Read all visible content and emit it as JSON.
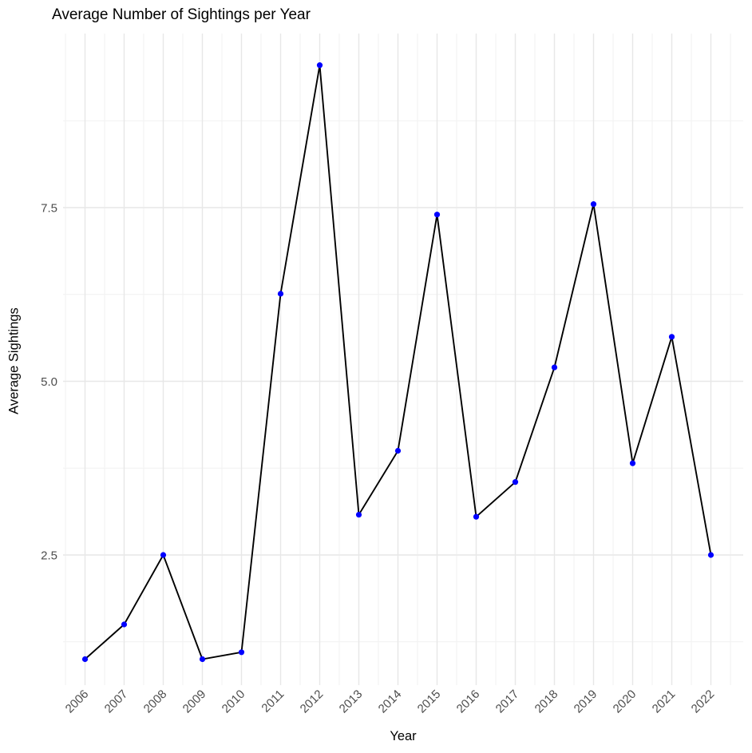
{
  "figure": {
    "title": "Average Number of Sightings per Year",
    "x_axis_title": "Year",
    "y_axis_title": "Average Sightings"
  },
  "chart_data": {
    "type": "line",
    "title": "Average Number of Sightings per Year",
    "xlabel": "Year",
    "ylabel": "Average Sightings",
    "categories": [
      "2006",
      "2007",
      "2008",
      "2009",
      "2010",
      "2011",
      "2012",
      "2013",
      "2014",
      "2015",
      "2016",
      "2017",
      "2018",
      "2019",
      "2020",
      "2021",
      "2022"
    ],
    "x": [
      2006,
      2007,
      2008,
      2009,
      2010,
      2011,
      2012,
      2013,
      2014,
      2015,
      2016,
      2017,
      2018,
      2019,
      2020,
      2021,
      2022
    ],
    "values": [
      1.0,
      1.5,
      2.5,
      1.0,
      1.1,
      6.26,
      9.55,
      3.08,
      4.0,
      7.4,
      3.05,
      3.55,
      5.2,
      7.55,
      3.82,
      5.64,
      2.5
    ],
    "y_tick_labels": [
      "2.5",
      "5.0",
      "7.5"
    ],
    "y_tick_values": [
      2.5,
      5.0,
      7.5
    ],
    "y_minor_values": [
      1.25,
      3.75,
      6.25,
      8.75
    ],
    "x_minor_offset": 0.5,
    "ylim": [
      0.6,
      10.0
    ],
    "xlim": [
      2005.4,
      2022.8
    ],
    "grid": true,
    "legend": false,
    "x_tick_rotation_deg": 45,
    "colors": {
      "point": "#0000FF",
      "line": "#000000",
      "grid_major": "#E7E7E7",
      "grid_minor": "#F1F1F1",
      "tick_label": "#4D4D4D",
      "text": "#000000",
      "background": "#FFFFFF"
    }
  }
}
